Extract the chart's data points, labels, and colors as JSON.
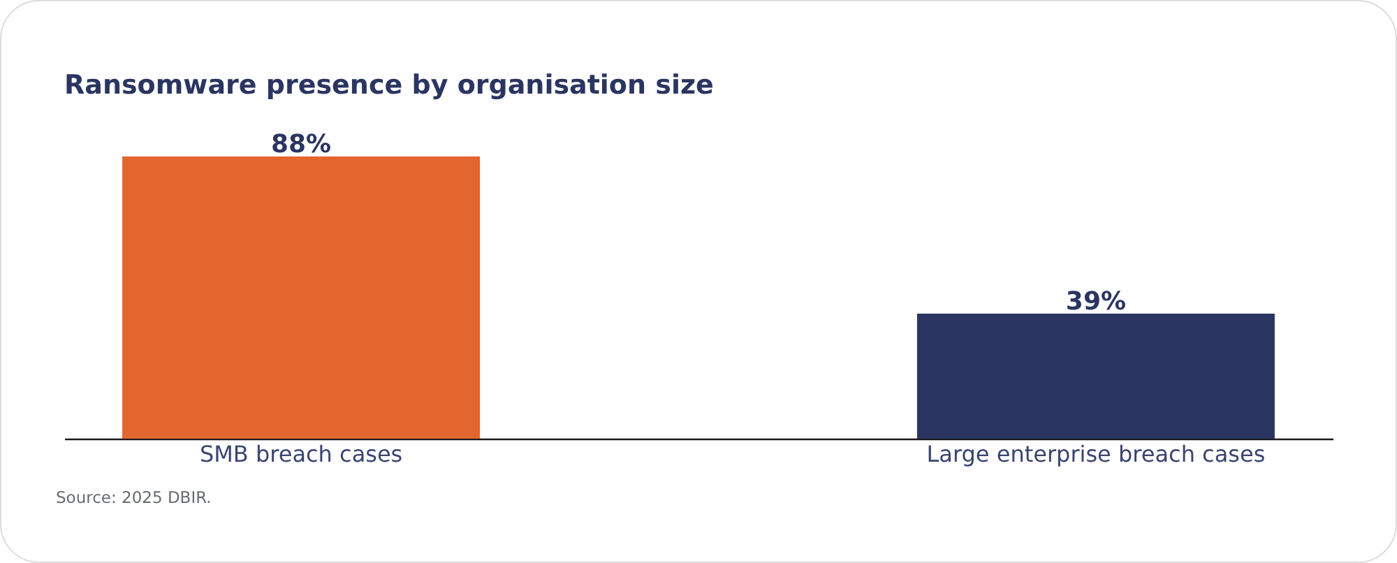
{
  "chart_data": {
    "type": "bar",
    "title": "Ransomware presence by organisation size",
    "categories": [
      "SMB breach cases",
      "Large enterprise breach cases"
    ],
    "values": [
      88,
      39
    ],
    "colors": [
      "#e2662d",
      "#2b3561"
    ],
    "value_labels": [
      "88%",
      "39%"
    ],
    "annotations": [
      "Source: 2025 DBIR."
    ]
  }
}
